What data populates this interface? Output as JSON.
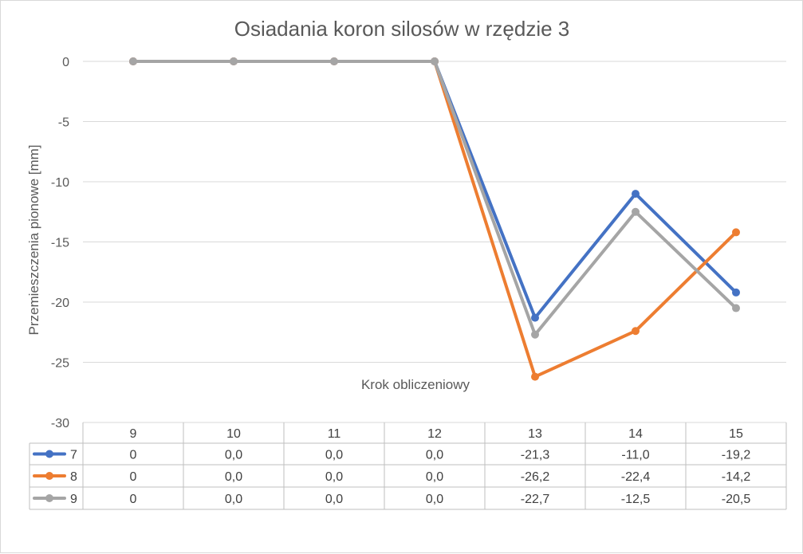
{
  "chart_data": {
    "type": "line",
    "title": "Osiadania koron silosów w rzędzie 3",
    "xlabel": "Krok obliczeniowy",
    "ylabel": "Przemieszczenia  pionowe [mm]",
    "ylim": [
      -30,
      0
    ],
    "yticks": [
      "0",
      "-5",
      "-10",
      "-15",
      "-20",
      "-25",
      "-30"
    ],
    "ytick_values": [
      0,
      -5,
      -10,
      -15,
      -20,
      -25,
      -30
    ],
    "categories": [
      "9",
      "10",
      "11",
      "12",
      "13",
      "14",
      "15"
    ],
    "grid": true,
    "legend": "data-table",
    "series": [
      {
        "name": "7",
        "color": "#4472c4",
        "values": [
          0,
          0,
          0,
          0,
          -21.3,
          -11.0,
          -19.2
        ],
        "table": [
          "0",
          "0,0",
          "0,0",
          "0,0",
          "-21,3",
          "-11,0",
          "-19,2"
        ]
      },
      {
        "name": "8",
        "color": "#ed7d31",
        "values": [
          0,
          0,
          0,
          0,
          -26.2,
          -22.4,
          -14.2
        ],
        "table": [
          "0",
          "0,0",
          "0,0",
          "0,0",
          "-26,2",
          "-22,4",
          "-14,2"
        ]
      },
      {
        "name": "9",
        "color": "#a5a5a5",
        "values": [
          0,
          0,
          0,
          0,
          -22.7,
          -12.5,
          -20.5
        ],
        "table": [
          "0",
          "0,0",
          "0,0",
          "0,0",
          "-22,7",
          "-12,5",
          "-20,5"
        ]
      }
    ]
  }
}
